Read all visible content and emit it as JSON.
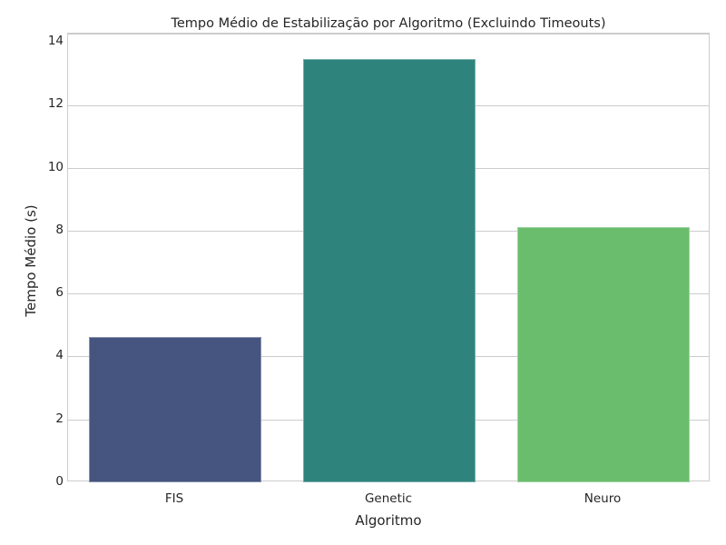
{
  "chart_data": {
    "type": "bar",
    "title": "Tempo Médio de Estabilização por Algoritmo (Excluindo Timeouts)",
    "xlabel": "Algoritmo",
    "ylabel": "Tempo Médio (s)",
    "categories": [
      "FIS",
      "Genetic",
      "Neuro"
    ],
    "values": [
      4.62,
      13.44,
      8.12
    ],
    "colors": [
      "#46557f",
      "#2e847d",
      "#6abd6d"
    ],
    "ylim": [
      0,
      14
    ],
    "yticks": [
      "0",
      "2",
      "4",
      "6",
      "8",
      "10",
      "12",
      "14"
    ],
    "grid": true,
    "legend": null
  }
}
